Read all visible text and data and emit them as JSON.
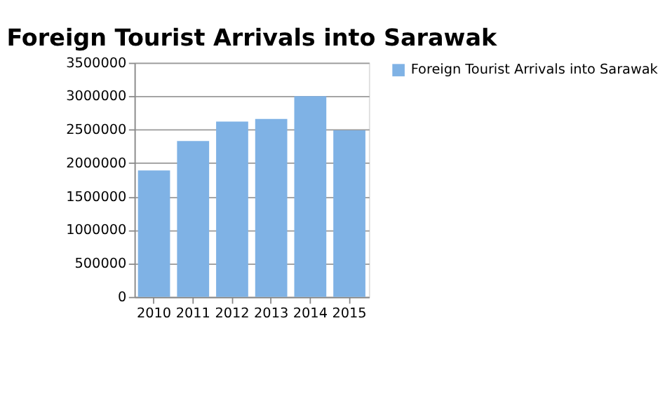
{
  "chart_data": {
    "type": "bar",
    "title": "Foreign Tourist Arrivals into Sarawak",
    "categories": [
      "2010",
      "2011",
      "2012",
      "2013",
      "2014",
      "2015"
    ],
    "series": [
      {
        "name": "Foreign Tourist Arrivals into Sarawak",
        "color": "#7fb2e5",
        "values": [
          1890000,
          2330000,
          2620000,
          2660000,
          3000000,
          2490000
        ]
      }
    ],
    "ylim": [
      0,
      3500000
    ],
    "yticks": [
      0,
      500000,
      1000000,
      1500000,
      2000000,
      2500000,
      3000000,
      3500000
    ],
    "grid": "y",
    "legend": "right"
  }
}
